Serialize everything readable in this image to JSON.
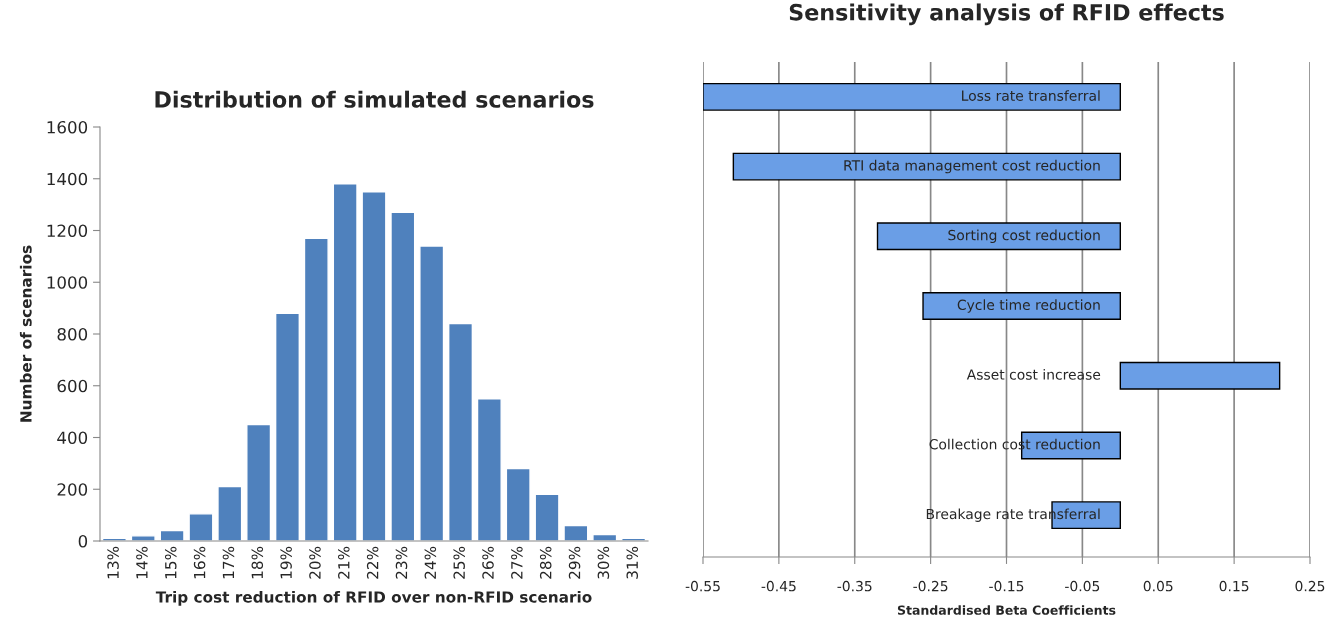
{
  "chart_data": [
    {
      "type": "bar",
      "title": "Distribution of simulated scenarios",
      "xlabel": "Trip cost reduction of RFID over non-RFID scenario",
      "ylabel": "Number of scenarios",
      "categories": [
        "13%",
        "14%",
        "15%",
        "16%",
        "17%",
        "18%",
        "19%",
        "20%",
        "21%",
        "22%",
        "23%",
        "24%",
        "25%",
        "26%",
        "27%",
        "28%",
        "29%",
        "30%",
        "31%"
      ],
      "values": [
        10,
        20,
        40,
        105,
        210,
        450,
        880,
        1170,
        1380,
        1350,
        1270,
        1140,
        840,
        550,
        280,
        180,
        60,
        25,
        10
      ],
      "color": "#4f81bd",
      "ylim": [
        0,
        1600
      ],
      "yticks": [
        0,
        200,
        400,
        600,
        800,
        1000,
        1200,
        1400,
        1600
      ],
      "grid": false
    },
    {
      "type": "bar",
      "orientation": "horizontal",
      "title": "Sensitivity analysis of RFID effects",
      "xlabel": "Standardised Beta Coefficients",
      "categories": [
        "Loss rate transferral",
        "RTI data management cost reduction",
        "Sorting cost reduction",
        "Cycle time reduction",
        "Asset cost increase",
        "Collection cost reduction",
        "Breakage rate transferral"
      ],
      "base": [
        -0.55,
        -0.51,
        -0.32,
        -0.26,
        0,
        -0.13,
        -0.09
      ],
      "values": [
        0.55,
        0.51,
        0.32,
        0.26,
        0.21,
        0.13,
        0.09
      ],
      "color": "#6a9ee6",
      "xlim": [
        -0.55,
        0.25
      ],
      "xticks": [
        -0.55,
        -0.45,
        -0.35,
        -0.25,
        -0.15,
        -0.05,
        0.05,
        0.15,
        0.25
      ],
      "grid": "x"
    }
  ]
}
